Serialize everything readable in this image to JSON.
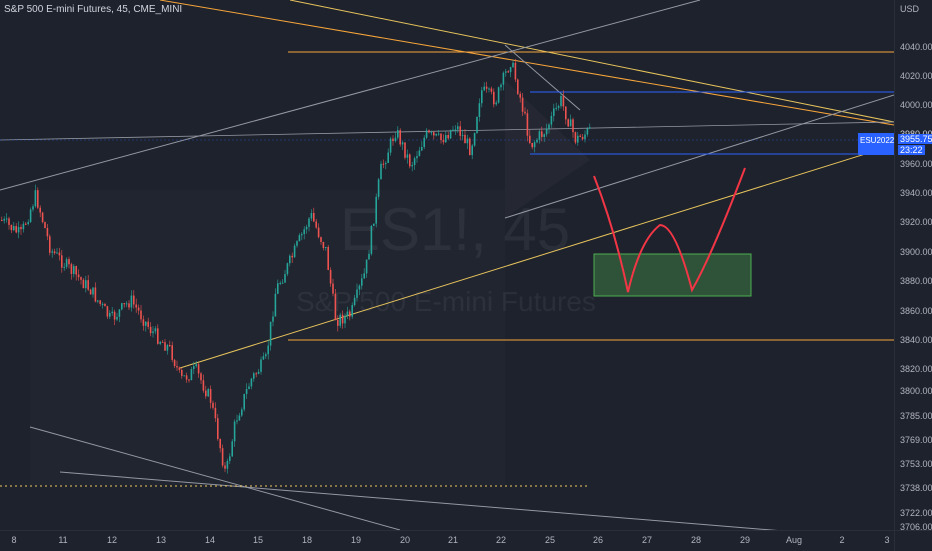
{
  "symbol": {
    "title": "S&P 500 E-mini Futures, 45, CME_MINI",
    "watermark_symbol": "ES1!, 45",
    "watermark_name": "S&P 500 E-mini Futures",
    "ticker_tag": "ESU2022",
    "last_price": "3955.75",
    "countdown": "23:22"
  },
  "price_axis": {
    "currency": "USD",
    "ticks": [
      "4040.00",
      "4020.00",
      "4000.00",
      "3980.00",
      "3960.00",
      "3940.00",
      "3920.00",
      "3900.00",
      "3880.00",
      "3860.00",
      "3840.00",
      "3820.00",
      "3800.00",
      "3785.00",
      "3769.00",
      "3753.00",
      "3738.00",
      "3722.00",
      "3706.00"
    ]
  },
  "time_axis": {
    "ticks": [
      "8",
      "11",
      "12",
      "13",
      "14",
      "15",
      "18",
      "19",
      "20",
      "21",
      "22",
      "25",
      "26",
      "27",
      "28",
      "29",
      "Aug",
      "2",
      "3"
    ]
  },
  "colors": {
    "background": "#1e222d",
    "up_candle": "#26a69a",
    "down_candle": "#ef5350",
    "orange_line": "#f7a53a",
    "blue_line": "#2962ff",
    "trend_line": "#9598a1",
    "yellow_line": "#e6c35c",
    "red_drawing": "#f23645",
    "green_box": "#4caf50"
  },
  "icons": {
    "last_price_marker": "price-tag-icon"
  }
}
